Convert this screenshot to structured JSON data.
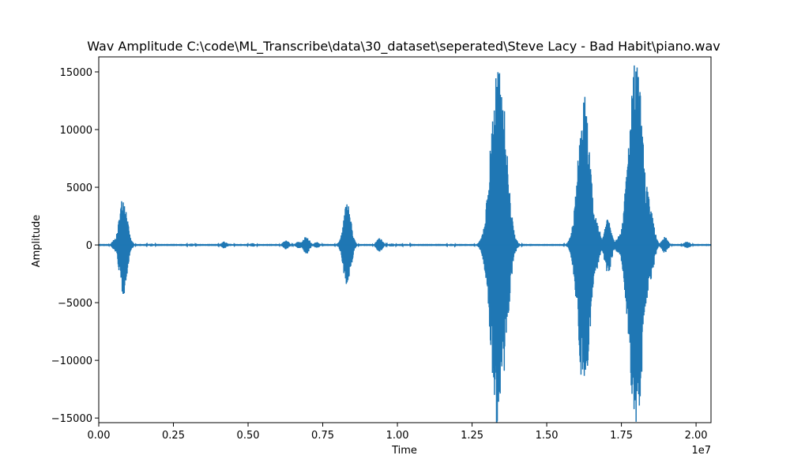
{
  "chart_data": {
    "type": "line",
    "title": "Wav Amplitude C:\\code\\ML_Transcribe\\data\\30_dataset\\seperated\\Steve Lacy - Bad Habit\\piano.wav",
    "xlabel": "Time",
    "ylabel": "Amplitude",
    "x_offset_label": "1e7",
    "xlim": [
      0,
      20500000
    ],
    "ylim": [
      -15400,
      16300
    ],
    "x_ticks": [
      0,
      2500000,
      5000000,
      7500000,
      10000000,
      12500000,
      15000000,
      17500000,
      20000000
    ],
    "x_tick_labels": [
      "0.00",
      "0.25",
      "0.50",
      "0.75",
      "1.00",
      "1.25",
      "1.50",
      "1.75",
      "2.00"
    ],
    "y_ticks": [
      15000,
      10000,
      5000,
      0,
      -5000,
      -10000,
      -15000
    ],
    "y_tick_labels": [
      "15000",
      "10000",
      "5000",
      "0",
      "−5000",
      "−10000",
      "−15000"
    ],
    "grid": false,
    "series": [
      {
        "color": "#1f77b4",
        "bursts": [
          {
            "t": 570000,
            "amp": 600
          },
          {
            "t": 650000,
            "amp": 500
          },
          {
            "t": 820000,
            "amp": 4400
          },
          {
            "t": 870000,
            "amp": 1500
          },
          {
            "t": 1000000,
            "amp": 700
          },
          {
            "t": 1750000,
            "amp": 120
          },
          {
            "t": 3100000,
            "amp": 120
          },
          {
            "t": 4200000,
            "amp": 300
          },
          {
            "t": 4400000,
            "amp": 100
          },
          {
            "t": 5150000,
            "amp": 150
          },
          {
            "t": 6270000,
            "amp": 400
          },
          {
            "t": 6700000,
            "amp": 300
          },
          {
            "t": 6950000,
            "amp": 800
          },
          {
            "t": 7300000,
            "amp": 250
          },
          {
            "t": 8100000,
            "amp": 300
          },
          {
            "t": 8320000,
            "amp": 3800
          },
          {
            "t": 9400000,
            "amp": 600
          },
          {
            "t": 9800000,
            "amp": 150
          },
          {
            "t": 10300000,
            "amp": 100
          },
          {
            "t": 11800000,
            "amp": 100
          },
          {
            "t": 13250000,
            "amp": 7500
          },
          {
            "t": 13350000,
            "amp": 15800
          },
          {
            "t": 13470000,
            "amp": 13800
          },
          {
            "t": 13550000,
            "amp": 4000
          },
          {
            "t": 13740000,
            "amp": 700
          },
          {
            "t": 15950000,
            "amp": 1600
          },
          {
            "t": 16250000,
            "amp": 13000
          },
          {
            "t": 16350000,
            "amp": 5000
          },
          {
            "t": 16650000,
            "amp": 2400
          },
          {
            "t": 17050000,
            "amp": 2500
          },
          {
            "t": 17400000,
            "amp": 800
          },
          {
            "t": 17870000,
            "amp": 11800
          },
          {
            "t": 17990000,
            "amp": 16300
          },
          {
            "t": 18150000,
            "amp": 8900
          },
          {
            "t": 18300000,
            "amp": 6000
          },
          {
            "t": 18480000,
            "amp": 3000
          },
          {
            "t": 18950000,
            "amp": 700
          },
          {
            "t": 19700000,
            "amp": 300
          }
        ]
      }
    ]
  }
}
